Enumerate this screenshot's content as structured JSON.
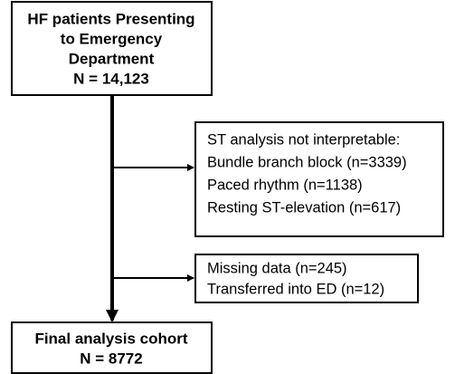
{
  "nodes": [
    {
      "lines": [
        "HF patients Presenting",
        "to Emergency",
        "Department",
        "N = 14,123"
      ]
    },
    {
      "lines": [
        "ST analysis not interpretable:",
        "Bundle branch block (n=3339)",
        "Paced rhythm (n=1138)",
        "Resting ST-elevation (n=617)"
      ]
    },
    {
      "lines": [
        "Missing data (n=245)",
        "Transferred into ED (n=12)"
      ]
    },
    {
      "lines": [
        "Final analysis cohort",
        "N = 8772"
      ]
    }
  ]
}
